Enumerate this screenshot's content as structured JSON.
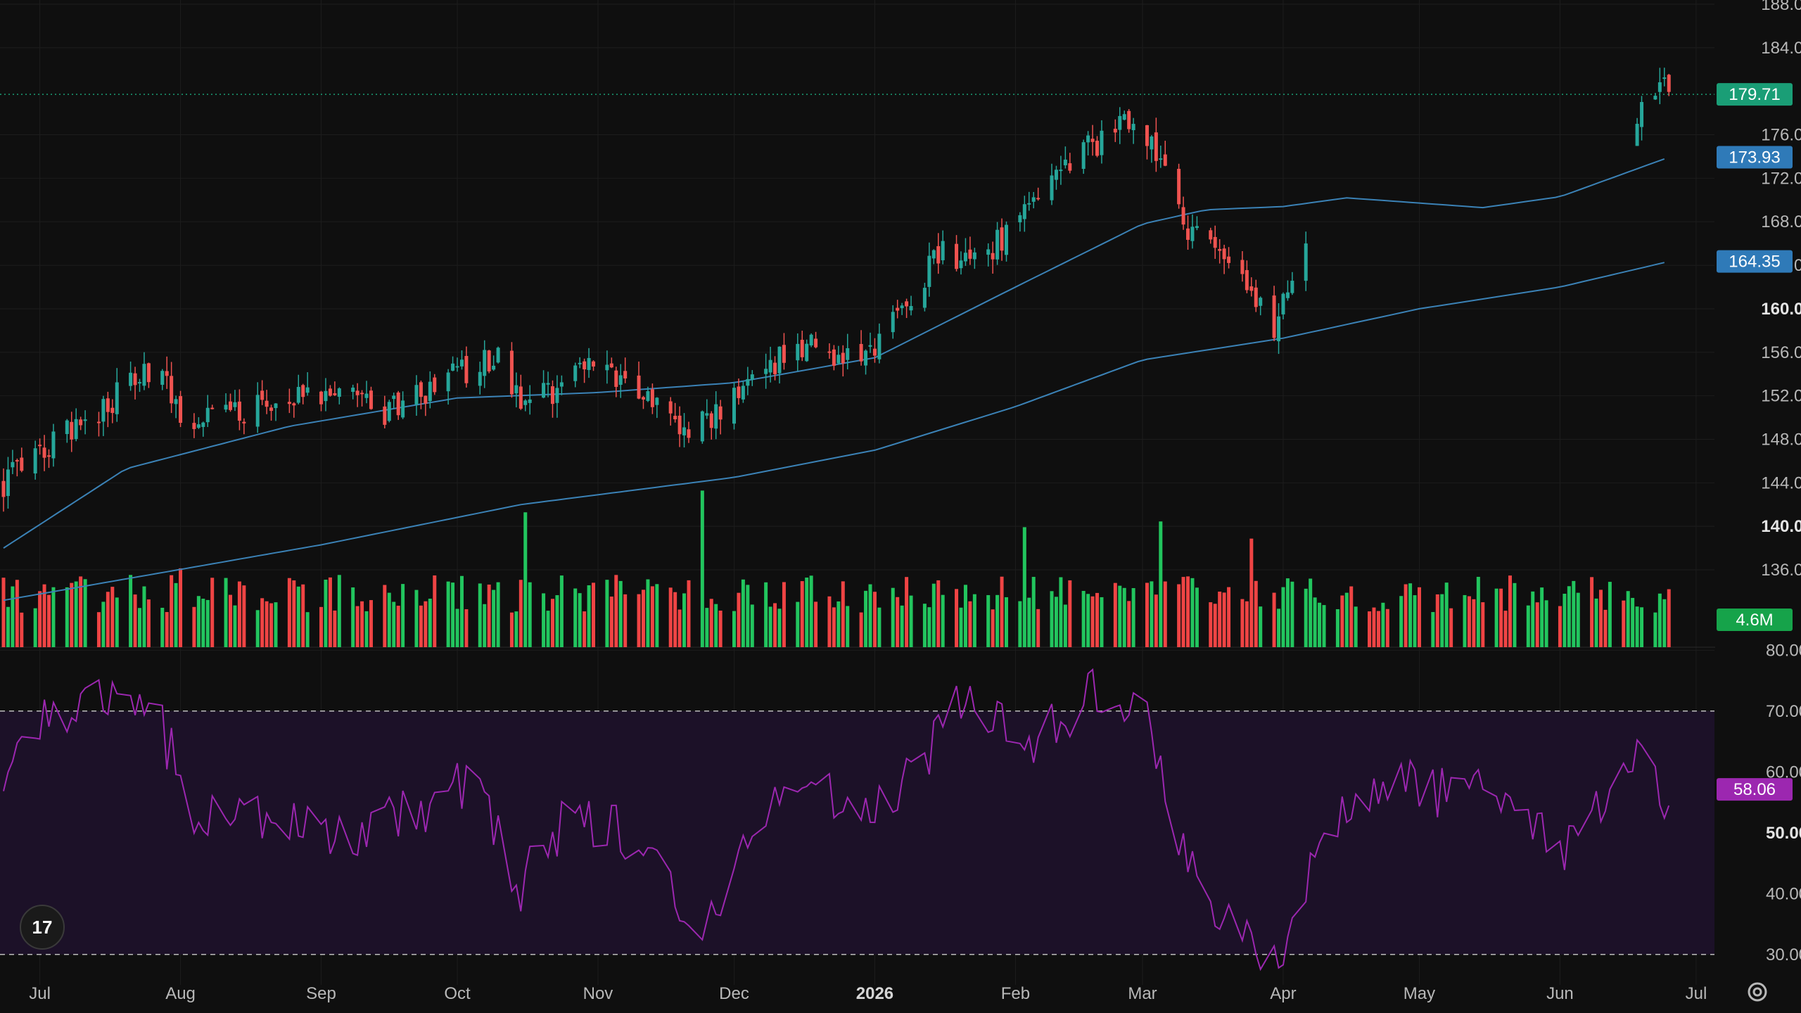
{
  "colors": {
    "background": "#0f0f0f",
    "grid": "#1d1d1d",
    "up": "#26a69a",
    "down": "#ef5350",
    "volume_up": "#22c55e",
    "volume_down": "#ef4444",
    "ma": "#3b82b6",
    "rsi": "#9c27b0",
    "rsi_band": "#1c1128",
    "price_badge": "#1a9e76",
    "ma_badge": "#2f7ab8",
    "volume_badge": "#16a34a",
    "rsi_badge": "#9c27b0"
  },
  "logo_text": "17",
  "chart_data": {
    "type": "candlestick",
    "time_axis": {
      "labels": [
        "Jul",
        "Aug",
        "Sep",
        "Oct",
        "Nov",
        "Dec",
        "2026",
        "Feb",
        "Mar",
        "Apr",
        "May",
        "Jun",
        "Jul"
      ],
      "bold": "2026",
      "range": [
        "2025-06-23",
        "2026-07-10"
      ]
    },
    "price_axis": {
      "ticks": [
        "188.00",
        "184.00",
        "176.00",
        "172.00",
        "168.00",
        "164.00",
        "160.00",
        "156.00",
        "152.00",
        "148.00",
        "144.00",
        "140.00",
        "136.00"
      ],
      "bold": [
        "160.00",
        "140.00"
      ],
      "range": [
        128.5,
        188
      ]
    },
    "last_price": {
      "value": "179.71",
      "price": 179.71
    },
    "moving_averages": [
      {
        "label": "173.93",
        "value": 173.93,
        "keypoints": [
          [
            "2025-06-23",
            138.0
          ],
          [
            "2025-07-20",
            145.3
          ],
          [
            "2025-08-25",
            149.2
          ],
          [
            "2025-10-01",
            151.8
          ],
          [
            "2025-11-01",
            152.3
          ],
          [
            "2025-12-01",
            153.2
          ],
          [
            "2026-01-01",
            155.5
          ],
          [
            "2026-02-01",
            162.0
          ],
          [
            "2026-03-01",
            167.8
          ],
          [
            "2026-03-15",
            169.1
          ],
          [
            "2026-04-01",
            169.4
          ],
          [
            "2026-04-15",
            170.2
          ],
          [
            "2026-05-15",
            169.3
          ],
          [
            "2026-06-01",
            170.3
          ],
          [
            "2026-06-25",
            173.93
          ]
        ]
      },
      {
        "label": "164.35",
        "value": 164.35,
        "keypoints": [
          [
            "2025-06-23",
            133.2
          ],
          [
            "2025-09-01",
            138.3
          ],
          [
            "2025-10-15",
            142.0
          ],
          [
            "2025-12-01",
            144.5
          ],
          [
            "2026-01-01",
            147.0
          ],
          [
            "2026-02-01",
            151.0
          ],
          [
            "2026-03-01",
            155.3
          ],
          [
            "2026-04-01",
            157.3
          ],
          [
            "2026-05-01",
            160.0
          ],
          [
            "2026-06-01",
            162.0
          ],
          [
            "2026-06-25",
            164.35
          ]
        ]
      }
    ],
    "price_keypoints": [
      [
        "2025-06-23",
        144.0
      ],
      [
        "2025-07-10",
        149.5
      ],
      [
        "2025-07-28",
        155.0
      ],
      [
        "2025-08-01",
        150.0
      ],
      [
        "2025-08-20",
        151.0
      ],
      [
        "2025-09-05",
        153.0
      ],
      [
        "2025-09-15",
        150.5
      ],
      [
        "2025-10-01",
        154.0
      ],
      [
        "2025-10-10",
        155.8
      ],
      [
        "2025-10-16",
        151.0
      ],
      [
        "2025-11-01",
        155.0
      ],
      [
        "2025-11-10",
        153.0
      ],
      [
        "2025-11-20",
        148.5
      ],
      [
        "2025-12-01",
        151.5
      ],
      [
        "2025-12-15",
        157.0
      ],
      [
        "2025-12-25",
        155.0
      ],
      [
        "2026-01-01",
        156.0
      ],
      [
        "2026-01-15",
        165.0
      ],
      [
        "2026-01-25",
        164.5
      ],
      [
        "2026-02-10",
        173.0
      ],
      [
        "2026-02-28",
        177.5
      ],
      [
        "2026-03-05",
        174.0
      ],
      [
        "2026-03-10",
        168.0
      ],
      [
        "2026-03-20",
        164.0
      ],
      [
        "2026-03-30",
        158.0
      ],
      [
        "2026-04-05",
        165.0
      ],
      [
        "2026-04-15",
        172.5
      ],
      [
        "2026-04-30",
        172.0
      ],
      [
        "2026-05-10",
        175.5
      ],
      [
        "2026-05-20",
        169.8
      ],
      [
        "2026-06-01",
        172.5
      ],
      [
        "2026-06-12",
        174.0
      ],
      [
        "2026-06-15",
        171.0
      ],
      [
        "2026-06-20",
        181.0
      ],
      [
        "2026-06-25",
        179.71
      ]
    ],
    "price_gap": [
      "2026-04-06",
      "2026-06-18"
    ],
    "volume": {
      "label": "4.6M",
      "range": [
        0,
        16000000
      ],
      "typical": 5500000,
      "spikes": [
        [
          "2025-08-01",
          6900000
        ],
        [
          "2025-10-16",
          11800000
        ],
        [
          "2025-11-24",
          13700000
        ],
        [
          "2026-02-03",
          10500000
        ],
        [
          "2026-03-01",
          10800000
        ],
        [
          "2026-03-05",
          11000000
        ],
        [
          "2026-03-25",
          9500000
        ]
      ]
    },
    "rsi": {
      "label": "58.06",
      "value": 58.06,
      "ticks": [
        "80.00",
        "70.00",
        "60.00",
        "50.00",
        "40.00",
        "30.00"
      ],
      "bold": [
        "50.00"
      ],
      "range": [
        25,
        80.5
      ],
      "band": [
        30,
        70
      ],
      "keypoints": [
        [
          "2025-06-23",
          57.0
        ],
        [
          "2025-07-01",
          68.0
        ],
        [
          "2025-07-15",
          71.0
        ],
        [
          "2025-07-25",
          72.0
        ],
        [
          "2025-08-05",
          52.0
        ],
        [
          "2025-08-20",
          52.5
        ],
        [
          "2025-09-05",
          49.0
        ],
        [
          "2025-09-20",
          53.0
        ],
        [
          "2025-10-05",
          59.0
        ],
        [
          "2025-10-15",
          41.0
        ],
        [
          "2025-10-25",
          53.0
        ],
        [
          "2025-11-10",
          49.0
        ],
        [
          "2025-11-25",
          33.0
        ],
        [
          "2025-12-05",
          52.0
        ],
        [
          "2025-12-15",
          59.5
        ],
        [
          "2025-12-25",
          55.0
        ],
        [
          "2026-01-05",
          55.0
        ],
        [
          "2026-01-20",
          71.0
        ],
        [
          "2026-02-05",
          66.0
        ],
        [
          "2026-02-20",
          74.0
        ],
        [
          "2026-03-03",
          68.0
        ],
        [
          "2026-03-10",
          46.0
        ],
        [
          "2026-03-20",
          36.0
        ],
        [
          "2026-03-31",
          29.5
        ],
        [
          "2026-04-10",
          50.0
        ],
        [
          "2026-04-25",
          60.0
        ],
        [
          "2026-05-10",
          55.0
        ],
        [
          "2026-05-20",
          58.0
        ],
        [
          "2026-06-01",
          47.0
        ],
        [
          "2026-06-12",
          55.0
        ],
        [
          "2026-06-20",
          63.0
        ],
        [
          "2026-06-24",
          56.0
        ],
        [
          "2026-06-25",
          58.06
        ]
      ]
    }
  }
}
